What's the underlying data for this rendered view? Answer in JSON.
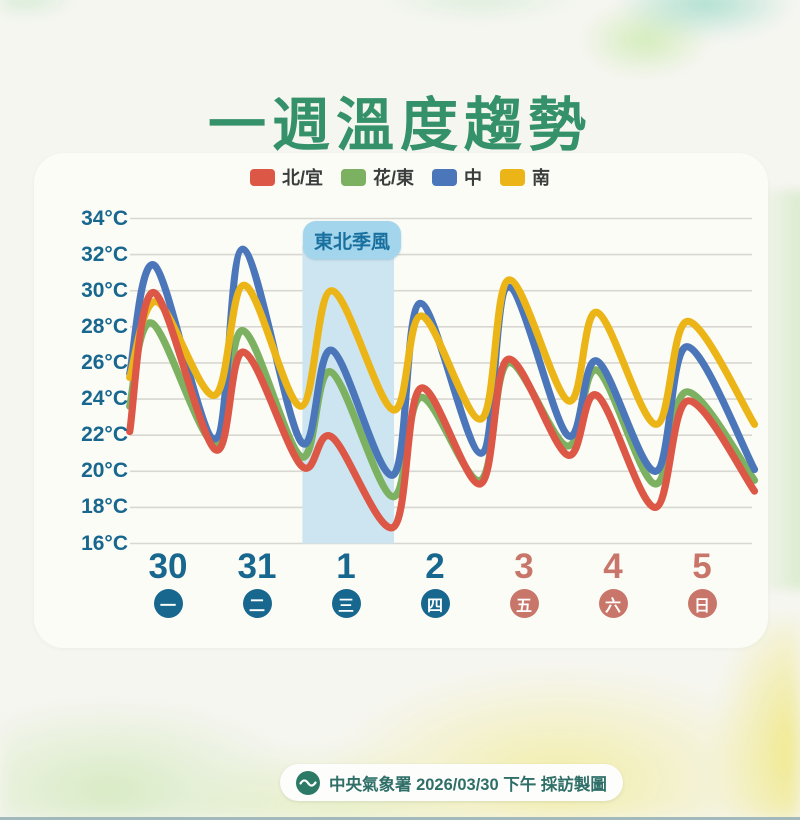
{
  "title": "一週溫度趨勢",
  "annotation": {
    "label": "東北季風"
  },
  "footer": {
    "text": "中央氣象署 2026/03/30 下午 採訪製圖",
    "logo": "cwa-wave-icon"
  },
  "colors": {
    "title_green": "#35916a",
    "axis_teal": "#17678f",
    "weekend_salmon": "#c8766a",
    "gridline": "#d8d7d2",
    "band_blue": "#cde5f1",
    "annotation_bg": "#a3d6ec",
    "annotation_text": "#19709f",
    "footer_text": "#2f6f68",
    "footer_logo_green": "#2c7a65",
    "legend_text": "#3a3d3c"
  },
  "chart_data": {
    "type": "line",
    "title": "一週溫度趨勢",
    "ylabel": "°C",
    "ylim": [
      16,
      34
    ],
    "y_ticks": [
      34,
      32,
      30,
      28,
      26,
      24,
      22,
      20,
      18,
      16
    ],
    "y_tick_suffix": "°C",
    "grid": true,
    "legend_position": "top",
    "x_days": [
      {
        "date": "30",
        "weekday": "一",
        "weekend": false
      },
      {
        "date": "31",
        "weekday": "二",
        "weekend": false
      },
      {
        "date": "1",
        "weekday": "三",
        "weekend": false
      },
      {
        "date": "2",
        "weekday": "四",
        "weekend": false
      },
      {
        "date": "3",
        "weekday": "五",
        "weekend": true
      },
      {
        "date": "4",
        "weekday": "六",
        "weekend": true
      },
      {
        "date": "5",
        "weekday": "日",
        "weekend": true
      }
    ],
    "monsoon_band": {
      "label": "東北季風",
      "start_day": 1.51,
      "end_day": 2.54,
      "top_temp": 32.5,
      "bottom_temp": 16
    },
    "draw_order": [
      "花/東",
      "中",
      "南",
      "北/宜"
    ],
    "series": [
      {
        "name": "北/宜",
        "color": "#dc5745",
        "points": [
          [
            -0.43,
            22.2
          ],
          [
            -0.16,
            29.9
          ],
          [
            0.53,
            21.2
          ],
          [
            0.85,
            26.6
          ],
          [
            1.5,
            20.3
          ],
          [
            1.84,
            21.9
          ],
          [
            2.53,
            16.9
          ],
          [
            2.84,
            24.6
          ],
          [
            3.51,
            19.3
          ],
          [
            3.82,
            26.2
          ],
          [
            4.49,
            20.9
          ],
          [
            4.82,
            24.2
          ],
          [
            5.47,
            18.0
          ],
          [
            5.84,
            23.9
          ],
          [
            6.59,
            18.9
          ]
        ]
      },
      {
        "name": "花/東",
        "color": "#7cb161",
        "points": [
          [
            -0.43,
            23.6
          ],
          [
            -0.18,
            28.2
          ],
          [
            0.53,
            21.5
          ],
          [
            0.84,
            27.8
          ],
          [
            1.5,
            20.8
          ],
          [
            1.83,
            25.5
          ],
          [
            2.52,
            18.6
          ],
          [
            2.84,
            24.1
          ],
          [
            3.51,
            19.5
          ],
          [
            3.82,
            26.0
          ],
          [
            4.49,
            21.4
          ],
          [
            4.82,
            25.6
          ],
          [
            5.47,
            19.3
          ],
          [
            5.83,
            24.4
          ],
          [
            6.59,
            19.5
          ]
        ]
      },
      {
        "name": "中",
        "color": "#4b77ba",
        "points": [
          [
            -0.43,
            25.4
          ],
          [
            -0.15,
            31.4
          ],
          [
            0.53,
            21.8
          ],
          [
            0.84,
            32.3
          ],
          [
            1.5,
            21.6
          ],
          [
            1.84,
            26.7
          ],
          [
            2.53,
            19.8
          ],
          [
            2.83,
            29.3
          ],
          [
            3.52,
            21.0
          ],
          [
            3.82,
            30.2
          ],
          [
            4.49,
            22.0
          ],
          [
            4.82,
            26.1
          ],
          [
            5.48,
            20.0
          ],
          [
            5.83,
            26.9
          ],
          [
            6.59,
            20.1
          ]
        ]
      },
      {
        "name": "南",
        "color": "#ecb517",
        "points": [
          [
            -0.43,
            25.2
          ],
          [
            -0.13,
            29.4
          ],
          [
            0.52,
            24.2
          ],
          [
            0.86,
            30.3
          ],
          [
            1.49,
            23.6
          ],
          [
            1.84,
            30.0
          ],
          [
            2.53,
            23.4
          ],
          [
            2.85,
            28.6
          ],
          [
            3.52,
            22.9
          ],
          [
            3.83,
            30.6
          ],
          [
            4.5,
            23.9
          ],
          [
            4.82,
            28.8
          ],
          [
            5.48,
            22.6
          ],
          [
            5.84,
            28.3
          ],
          [
            6.59,
            22.6
          ]
        ]
      }
    ]
  }
}
